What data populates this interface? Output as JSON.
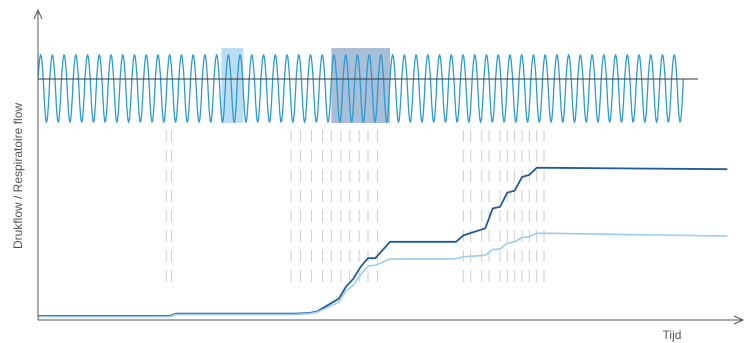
{
  "chart_data": {
    "type": "line",
    "xlabel": "Tijd",
    "ylabel": "Drukflow / Respiratoire flow",
    "colors": {
      "axis": "#555555",
      "flow": "#2b9bd6",
      "pressure_dark": "#1f5b99",
      "pressure_light": "#9ccbee",
      "highlight_light": "#bcdcf3",
      "highlight_dark": "#a9bfd8",
      "event_marks": "#cfcfcf"
    },
    "series": [
      {
        "values": [
          [
            0,
            0.03
          ],
          [
            18,
            0.03
          ],
          [
            18.8,
            0.06
          ],
          [
            35,
            0.06
          ],
          [
            37,
            0.07
          ],
          [
            38,
            0.09
          ],
          [
            41,
            0.27
          ],
          [
            42,
            0.44
          ],
          [
            43,
            0.55
          ],
          [
            44,
            0.72
          ],
          [
            45,
            0.84
          ],
          [
            46,
            0.84
          ],
          [
            48,
            1.07
          ],
          [
            57,
            1.07
          ],
          [
            58,
            1.16
          ],
          [
            61,
            1.26
          ],
          [
            62,
            1.54
          ],
          [
            63,
            1.56
          ],
          [
            64,
            1.76
          ],
          [
            65,
            1.79
          ],
          [
            66,
            1.98
          ],
          [
            67,
            2.01
          ],
          [
            68,
            2.11
          ],
          [
            70,
            2.11
          ],
          [
            94,
            2.09
          ]
        ]
      },
      {
        "values": [
          [
            0,
            0.02
          ],
          [
            18,
            0.02
          ],
          [
            18.8,
            0.05
          ],
          [
            35,
            0.05
          ],
          [
            37,
            0.06
          ],
          [
            38,
            0.08
          ],
          [
            41,
            0.22
          ],
          [
            42,
            0.38
          ],
          [
            43,
            0.46
          ],
          [
            44,
            0.61
          ],
          [
            45,
            0.73
          ],
          [
            46,
            0.74
          ],
          [
            48,
            0.83
          ],
          [
            57,
            0.83
          ],
          [
            58,
            0.86
          ],
          [
            61,
            0.88
          ],
          [
            62,
            0.96
          ],
          [
            63,
            0.97
          ],
          [
            64,
            1.05
          ],
          [
            65,
            1.07
          ],
          [
            66,
            1.13
          ],
          [
            67,
            1.14
          ],
          [
            68,
            1.19
          ],
          [
            70,
            1.19
          ],
          [
            94,
            1.15
          ]
        ]
      },
      {
        "description_of_values": "respiratory flow oscillation around baseline",
        "values": [
          [
            0,
            0.0
          ],
          [
            2,
            0.0
          ],
          [
            4,
            0.0
          ],
          [
            6,
            0.0
          ],
          [
            8,
            0.0
          ],
          [
            10,
            0.0
          ],
          [
            12,
            0.0
          ],
          [
            14,
            0.0
          ],
          [
            16,
            0.0
          ],
          [
            18,
            0.0
          ],
          [
            20,
            0.0
          ],
          [
            22,
            0.0
          ],
          [
            24,
            0.0
          ],
          [
            26,
            0.0
          ],
          [
            28,
            0.0
          ],
          [
            30,
            0.0
          ],
          [
            32,
            0.0
          ],
          [
            34,
            0.0
          ],
          [
            36,
            0.0
          ],
          [
            38,
            0.0
          ],
          [
            40,
            0.0
          ],
          [
            42,
            0.0
          ],
          [
            44,
            0.0
          ],
          [
            46,
            0.0
          ],
          [
            48,
            0.0
          ],
          [
            50,
            0.0
          ],
          [
            52,
            0.0
          ],
          [
            54,
            0.0
          ],
          [
            56,
            0.0
          ],
          [
            58,
            0.0
          ],
          [
            60,
            0.0
          ],
          [
            62,
            0.0
          ],
          [
            64,
            0.0
          ],
          [
            66,
            0.0
          ],
          [
            68,
            0.0
          ],
          [
            70,
            0.0
          ],
          [
            72,
            0.0
          ],
          [
            74,
            0.0
          ],
          [
            76,
            0.0
          ],
          [
            78,
            0.0
          ],
          [
            80,
            0.0
          ],
          [
            82,
            0.0
          ],
          [
            84,
            0.0
          ],
          [
            86,
            0.0
          ],
          [
            88,
            0.0
          ],
          [
            90,
            0.0
          ],
          [
            92,
            0.0
          ],
          [
            94,
            0.0
          ]
        ]
      }
    ],
    "breathing": {
      "amplitude_up": 0.75,
      "amplitude_down": 1.0,
      "period": 1.6,
      "x_end": 88
    },
    "highlights": [
      {
        "x0": 25,
        "x1": 28,
        "tone": "light"
      },
      {
        "x0": 40,
        "x1": 48,
        "tone": "dark"
      }
    ],
    "event_marks": {
      "rows": 8,
      "x": [
        17.5,
        18.2,
        34.5,
        35.8,
        37.3,
        38.8,
        40.0,
        41.3,
        42.5,
        43.8,
        45.0,
        46.3,
        58.0,
        59.0,
        60.5,
        61.5,
        63.0,
        64.0,
        65.0,
        66.0,
        67.0,
        68.0,
        69.0
      ]
    },
    "xlim": [
      0,
      96
    ],
    "ylim_pressure": [
      0,
      2.5
    ],
    "ylim_flow": [
      -1.0,
      1.0
    ],
    "grid": false,
    "legend": "none"
  }
}
